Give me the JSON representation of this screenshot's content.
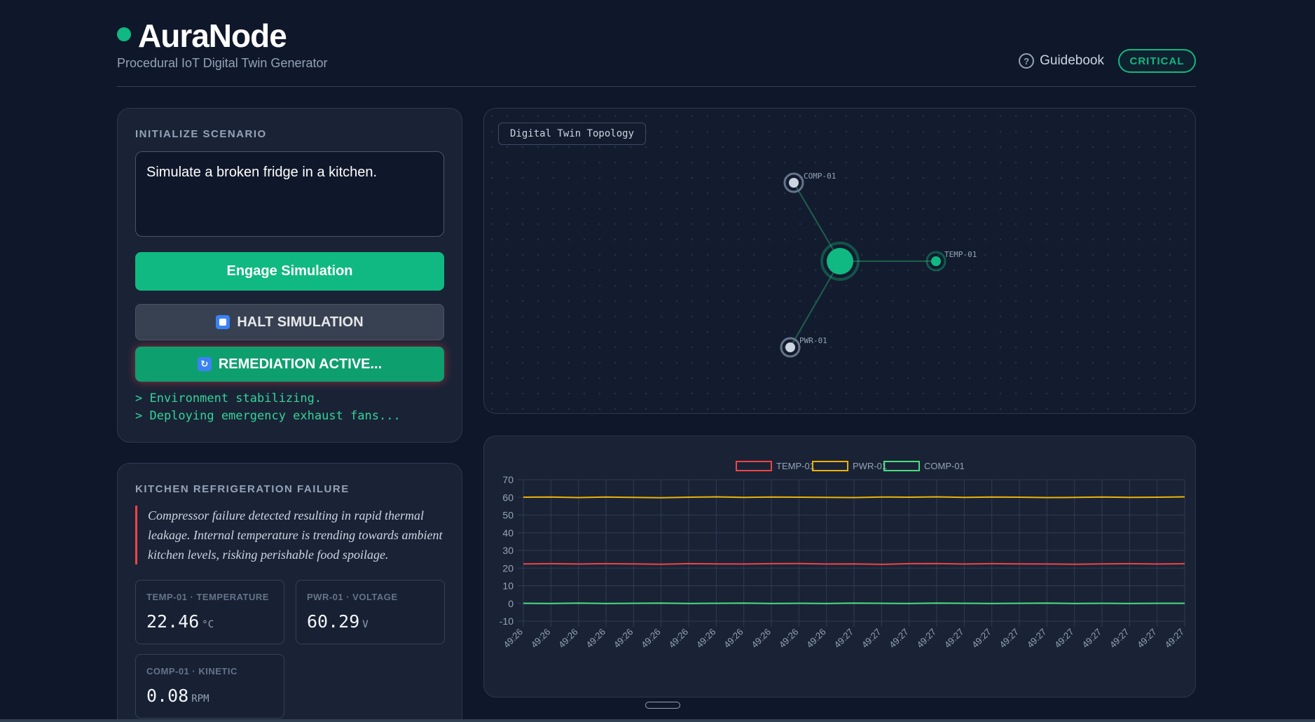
{
  "app": {
    "title": "AuraNode",
    "subtitle": "Procedural IoT Digital Twin Generator",
    "guidebook_label": "Guidebook",
    "status": "CRITICAL",
    "brand_color": "#10b981"
  },
  "init": {
    "title": "INITIALIZE SCENARIO",
    "prompt": "Simulate a broken fridge in a kitchen.",
    "engage_label": "Engage Simulation",
    "halt_label": "HALT SIMULATION",
    "remediation_label": "REMEDIATION ACTIVE...",
    "log": [
      "> Environment stabilizing.",
      "> Deploying emergency exhaust fans..."
    ]
  },
  "scenario": {
    "title": "KITCHEN REFRIGERATION FAILURE",
    "description": "Compressor failure detected resulting in rapid thermal leakage. Internal temperature is trending towards ambient kitchen levels, risking perishable food spoilage.",
    "metrics": [
      {
        "label": "TEMP-01 · TEMPERATURE",
        "value": "22.46",
        "unit": "°C"
      },
      {
        "label": "PWR-01 · VOLTAGE",
        "value": "60.29",
        "unit": "V"
      },
      {
        "label": "COMP-01 · KINETIC",
        "value": "0.08",
        "unit": "RPM"
      }
    ]
  },
  "topology": {
    "tag": "Digital Twin Topology",
    "nodes": [
      {
        "id": "COMP-01",
        "color": "#cbd5e1"
      },
      {
        "id": "TEMP-01",
        "color": "#10b981"
      },
      {
        "id": "PWR-01",
        "color": "#cbd5e1"
      }
    ]
  },
  "chart_data": {
    "type": "line",
    "categories": [
      "49:26",
      "49:26",
      "49:26",
      "49:26",
      "49:26",
      "49:26",
      "49:26",
      "49:26",
      "49:26",
      "49:26",
      "49:26",
      "49:26",
      "49:27",
      "49:27",
      "49:27",
      "49:27",
      "49:27",
      "49:27",
      "49:27",
      "49:27",
      "49:27",
      "49:27",
      "49:27",
      "49:27",
      "49:27"
    ],
    "series": [
      {
        "name": "TEMP-01",
        "color": "#ef4444",
        "values": [
          22.4,
          22.5,
          22.3,
          22.5,
          22.4,
          22.2,
          22.5,
          22.4,
          22.3,
          22.5,
          22.6,
          22.3,
          22.4,
          22.1,
          22.5,
          22.6,
          22.3,
          22.5,
          22.4,
          22.3,
          22.2,
          22.4,
          22.5,
          22.3,
          22.46
        ]
      },
      {
        "name": "PWR-01",
        "color": "#eab308",
        "values": [
          60.1,
          60.2,
          59.9,
          60.2,
          60.0,
          59.8,
          60.1,
          60.3,
          60.0,
          60.2,
          60.1,
          60.0,
          59.9,
          60.2,
          60.1,
          60.3,
          60.0,
          60.2,
          60.1,
          59.9,
          60.0,
          60.2,
          60.0,
          60.1,
          60.29
        ]
      },
      {
        "name": "COMP-01",
        "color": "#4ade80",
        "values": [
          0.1,
          0.0,
          0.2,
          0.0,
          0.1,
          0.2,
          0.0,
          0.1,
          0.2,
          0.0,
          0.1,
          0.0,
          0.2,
          0.1,
          0.0,
          0.2,
          0.1,
          0.0,
          0.1,
          0.2,
          0.0,
          0.1,
          0.0,
          0.1,
          0.08
        ]
      }
    ],
    "ylim": [
      -10,
      70
    ],
    "yticks": [
      -10,
      0,
      10,
      20,
      30,
      40,
      50,
      60,
      70
    ],
    "grid": true,
    "legend": "top-center"
  }
}
